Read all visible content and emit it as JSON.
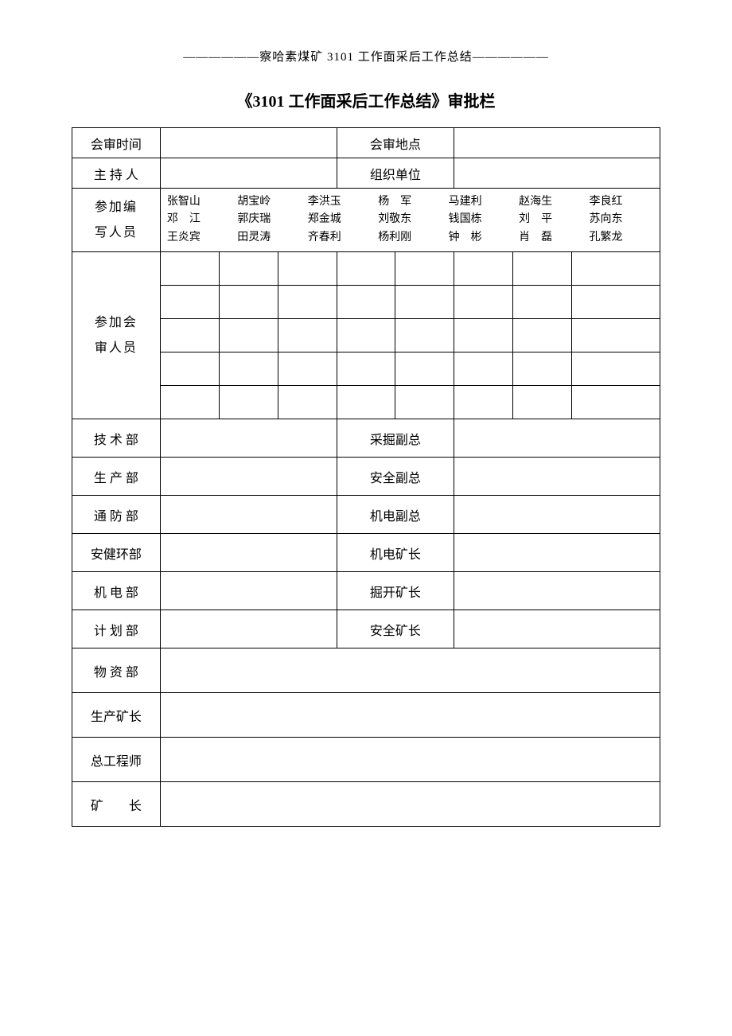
{
  "header": {
    "prefix": "——————",
    "text": "察哈素煤矿 3101 工作面采后工作总结",
    "suffix": "——————"
  },
  "title": "《3101 工作面采后工作总结》审批栏",
  "row1": {
    "label1": "会审时间",
    "label2": "会审地点"
  },
  "row2": {
    "label1": "主 持 人",
    "label2": "组织单位"
  },
  "participants": {
    "label": "参加编写人员",
    "names": [
      "张智山",
      "胡宝岭",
      "李洪玉",
      "杨　军",
      "马建利",
      "赵海生",
      "李良红",
      "邓　江",
      "郭庆瑞",
      "郑金城",
      "刘敬东",
      "钱国栋",
      "刘　平",
      "苏向东",
      "王炎宾",
      "田灵涛",
      "齐春利",
      "杨利刚",
      "钟　彬",
      "肖　磊",
      "孔繁龙"
    ]
  },
  "reviewers": {
    "label": "参加会审人员"
  },
  "departments": [
    {
      "left": "技 术 部",
      "right": "采掘副总"
    },
    {
      "left": "生 产 部",
      "right": "安全副总"
    },
    {
      "left": "通 防 部",
      "right": "机电副总"
    },
    {
      "left": "安健环部",
      "right": "机电矿长"
    },
    {
      "left": "机 电 部",
      "right": "掘开矿长"
    },
    {
      "left": "计 划 部",
      "right": "安全矿长"
    }
  ],
  "single_rows": [
    "物 资 部",
    "生产矿长",
    "总工程师",
    "矿　　长"
  ],
  "colors": {
    "text": "#000000",
    "border": "#000000",
    "background": "#ffffff"
  },
  "fonts": {
    "body": 16,
    "title": 20,
    "names": 14
  }
}
